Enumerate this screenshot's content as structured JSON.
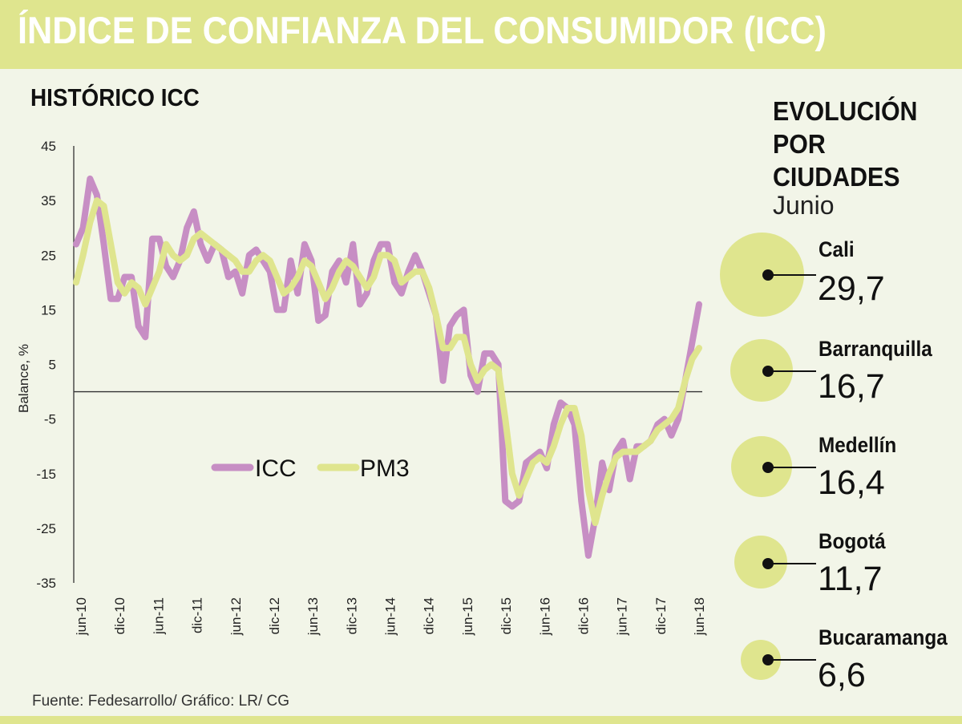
{
  "header": {
    "title": "ÍNDICE DE CONFIANZA DEL CONSUMIDOR (ICC)"
  },
  "section": {
    "title": "HISTÓRICO ICC"
  },
  "source": "Fuente: Fedesarrollo/ Gráfico: LR/ CG",
  "colors": {
    "icc": "#c78ec4",
    "pm3": "#dfe58e",
    "header_band": "#dfe58e",
    "background": "#f2f5e8"
  },
  "chart_data": [
    {
      "type": "line",
      "title": "HISTÓRICO ICC",
      "ylabel": "Balance, %",
      "xlabel": "",
      "ylim": [
        -35,
        45
      ],
      "yticks": [
        45,
        35,
        25,
        15,
        5,
        -5,
        -15,
        -25,
        -35
      ],
      "xtick_labels": [
        "jun-10",
        "dic-10",
        "jun-11",
        "dic-11",
        "jun-12",
        "dic-12",
        "jun-13",
        "dic-13",
        "jun-14",
        "dic-14",
        "jun-15",
        "dic-15",
        "jun-16",
        "dic-16",
        "jun-17",
        "dic-17",
        "jun-18"
      ],
      "x_start": "jun-10",
      "x_end": "jun-18",
      "legend": [
        "ICC",
        "PM3"
      ],
      "series": [
        {
          "name": "ICC",
          "values": [
            27,
            30,
            39,
            36,
            27,
            17,
            17,
            21,
            21,
            12,
            10,
            28,
            28,
            23,
            21,
            24,
            30,
            33,
            27,
            24,
            27,
            26,
            21,
            22,
            18,
            25,
            26,
            24,
            22,
            15,
            15,
            24,
            18,
            27,
            24,
            13,
            14,
            22,
            24,
            20,
            27,
            16,
            18,
            24,
            27,
            27,
            20,
            18,
            22,
            25,
            22,
            18,
            14,
            2,
            12,
            14,
            15,
            3,
            0,
            7,
            7,
            5,
            -20,
            -21,
            -20,
            -13,
            -12,
            -11,
            -14,
            -6,
            -2,
            -3,
            -6,
            -20,
            -30,
            -23,
            -13,
            -18,
            -11,
            -9,
            -16,
            -10,
            -10,
            -9,
            -6,
            -5,
            -8,
            -5,
            2,
            9,
            16
          ]
        },
        {
          "name": "PM3",
          "values": [
            20,
            25,
            31,
            35,
            34,
            27,
            20,
            18,
            20,
            19,
            16,
            19,
            22,
            27,
            25,
            24,
            25,
            28,
            29,
            28,
            27,
            26,
            25,
            24,
            22,
            22,
            24,
            25,
            24,
            21,
            18,
            19,
            21,
            24,
            23,
            20,
            17,
            19,
            22,
            24,
            23,
            21,
            19,
            21,
            25,
            25,
            24,
            20,
            21,
            22,
            22,
            19,
            14,
            8,
            8,
            10,
            10,
            5,
            2,
            4,
            5,
            4,
            -5,
            -15,
            -19,
            -16,
            -13,
            -12,
            -13,
            -10,
            -6,
            -3,
            -3,
            -8,
            -18,
            -24,
            -19,
            -15,
            -12,
            -11,
            -11,
            -11,
            -10,
            -9,
            -7,
            -6,
            -5,
            -3,
            2,
            6,
            8
          ]
        }
      ]
    },
    {
      "type": "bubble",
      "title": "EVOLUCIÓN POR CIUDADES",
      "subtitle": "Junio",
      "categories": [
        "Cali",
        "Barranquilla",
        "Medellín",
        "Bogotá",
        "Bucaramanga"
      ],
      "values": [
        "29,7",
        "16,7",
        "16,4",
        "11,7",
        "6,6"
      ],
      "numeric_values": [
        29.7,
        16.7,
        16.4,
        11.7,
        6.6
      ]
    }
  ],
  "right_panel": {
    "title_lines": [
      "EVOLUCIÓN",
      "POR",
      "CIUDADES"
    ],
    "subtitle": "Junio",
    "cities": [
      {
        "name": "Cali",
        "value": "29,7"
      },
      {
        "name": "Barranquilla",
        "value": "16,7"
      },
      {
        "name": "Medellín",
        "value": "16,4"
      },
      {
        "name": "Bogotá",
        "value": "11,7"
      },
      {
        "name": "Bucaramanga",
        "value": "6,6"
      }
    ]
  }
}
